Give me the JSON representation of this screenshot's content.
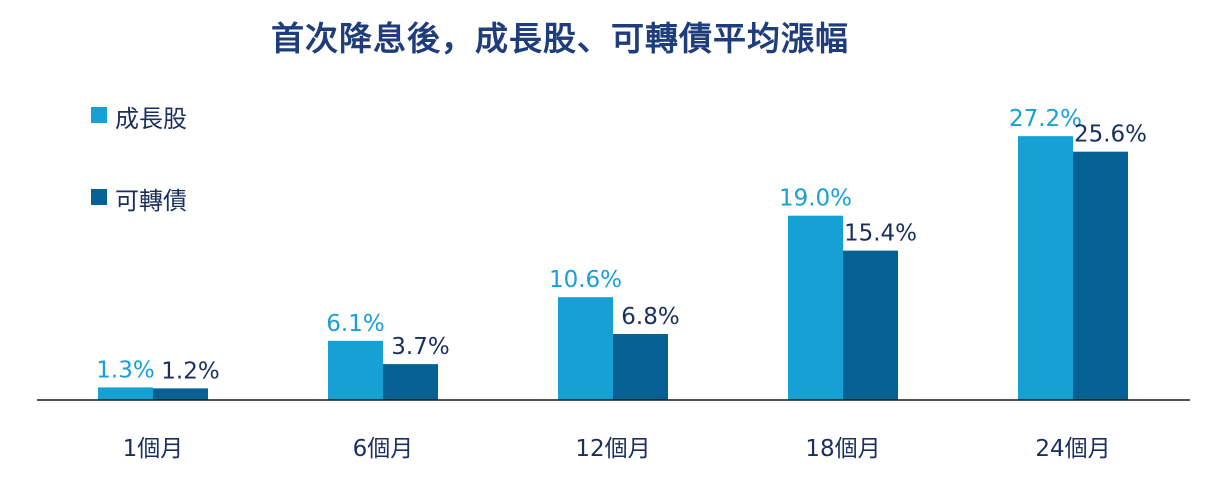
{
  "chart_data": {
    "type": "bar",
    "title": "首次降息後，成長股、可轉債平均漲幅",
    "categories": [
      "1個月",
      "6個月",
      "12個月",
      "18個月",
      "24個月"
    ],
    "series": [
      {
        "name": "成長股",
        "values": [
          1.3,
          6.1,
          10.6,
          19.0,
          27.2
        ],
        "labels": [
          "1.3%",
          "6.1%",
          "10.6%",
          "19.0%",
          "27.2%"
        ],
        "color": "#17a0d4"
      },
      {
        "name": "可轉債",
        "values": [
          1.2,
          3.7,
          6.8,
          15.4,
          25.6
        ],
        "labels": [
          "1.2%",
          "3.7%",
          "6.8%",
          "15.4%",
          "25.6%"
        ],
        "color": "#056193"
      }
    ],
    "ylim": [
      0,
      30
    ],
    "grid": false,
    "legend_position": "top-left",
    "colors": {
      "title": "#1f3d7a",
      "axis": "#1a1a1a",
      "label_growth": "#17a0d4",
      "label_cb": "#1a2f5e",
      "category_label": "#1a2f5e"
    }
  }
}
